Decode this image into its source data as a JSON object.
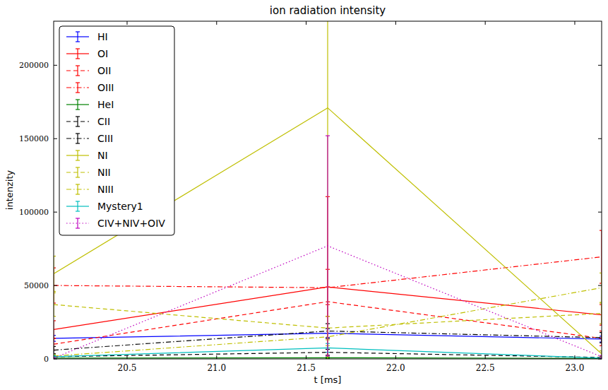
{
  "chart_data": {
    "type": "line",
    "title": "ion radiation intensity",
    "x_label": "t [ms]",
    "y_label": "intenzity",
    "x": [
      20.09,
      21.62,
      23.15
    ],
    "xlim": [
      20.09,
      23.15
    ],
    "ylim": [
      0,
      230000
    ],
    "xticks": [
      20.5,
      {
        "value": 21,
        "label": "21.0"
      },
      21.5,
      {
        "value": 22,
        "label": "22.0"
      },
      22.5,
      {
        "value": 23,
        "label": "23.0"
      }
    ],
    "yticks": [
      0,
      50000,
      100000,
      150000,
      200000
    ],
    "grid": false,
    "legend": "upper left",
    "series": [
      {
        "name": "HI",
        "color": "#0000ff",
        "line_style": "solid",
        "values": [
          14000,
          17500,
          13500
        ],
        "errors": [
          2000,
          3000,
          2000
        ]
      },
      {
        "name": "OI",
        "color": "#ff0000",
        "line_style": "solid",
        "values": [
          20000,
          49000,
          30000
        ],
        "errors": [
          6000,
          12000,
          7000
        ]
      },
      {
        "name": "OII",
        "color": "#ff0000",
        "line_style": "dashed",
        "values": [
          10000,
          39000,
          14000
        ],
        "errors": [
          4000,
          10000,
          5000
        ]
      },
      {
        "name": "OIII",
        "color": "#ff0000",
        "line_style": "dashdot",
        "values": [
          50000,
          48500,
          69500
        ],
        "errors": [
          12000,
          62000,
          18000
        ]
      },
      {
        "name": "HeI",
        "color": "#008000",
        "line_style": "solid",
        "values": [
          500,
          800,
          300
        ],
        "errors": [
          300,
          500,
          300
        ]
      },
      {
        "name": "CII",
        "color": "#000000",
        "line_style": "dashed",
        "values": [
          1500,
          4500,
          1000
        ],
        "errors": [
          800,
          2000,
          700
        ]
      },
      {
        "name": "CIII",
        "color": "#000000",
        "line_style": "dashdot",
        "values": [
          6000,
          19000,
          14500
        ],
        "errors": [
          2500,
          5000,
          3500
        ]
      },
      {
        "name": "NI",
        "color": "#bfbf00",
        "line_style": "solid",
        "values": [
          58000,
          171000,
          3500
        ],
        "errors": [
          12000,
          175000,
          2000
        ]
      },
      {
        "name": "NII",
        "color": "#bfbf00",
        "line_style": "dashed",
        "values": [
          37000,
          21000,
          31000
        ],
        "errors": [
          8000,
          8000,
          7000
        ]
      },
      {
        "name": "NIII",
        "color": "#bfbf00",
        "line_style": "dashdot",
        "values": [
          2000,
          15000,
          48500
        ],
        "errors": [
          1000,
          6000,
          10000
        ]
      },
      {
        "name": "Mystery1",
        "color": "#00bfbf",
        "line_style": "solid",
        "values": [
          1500,
          7500,
          500
        ],
        "errors": [
          800,
          3000,
          400
        ]
      },
      {
        "name": "CIV+NIV+OIV",
        "color": "#bf00bf",
        "line_style": "dotted",
        "values": [
          500,
          77000,
          1500
        ],
        "errors": [
          400,
          75000,
          800
        ]
      }
    ]
  }
}
